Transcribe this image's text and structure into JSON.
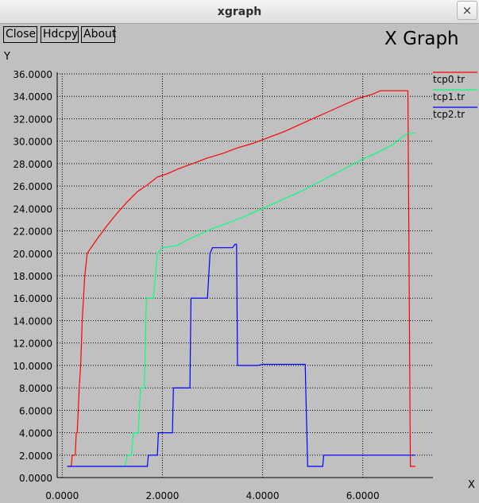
{
  "window": {
    "title": "xgraph",
    "close_glyph": "×"
  },
  "toolbar": {
    "close_label": "Close",
    "hdcpy_label": "Hdcpy",
    "about_label": "About"
  },
  "chart_data": {
    "type": "line",
    "title": "X Graph",
    "xlabel": "X",
    "ylabel": "Y",
    "xlim": [
      -0.1,
      7.4
    ],
    "ylim": [
      0,
      36
    ],
    "grid": true,
    "grid_style": "dotted",
    "legend_position": "right",
    "xticks": [
      0,
      2,
      4,
      6
    ],
    "xtick_labels": [
      "0.0000",
      "2.0000",
      "4.0000",
      "6.0000"
    ],
    "yticks": [
      0,
      2,
      4,
      6,
      8,
      10,
      12,
      14,
      16,
      18,
      20,
      22,
      24,
      26,
      28,
      30,
      32,
      34,
      36
    ],
    "ytick_labels": [
      "0.0000",
      "2.0000",
      "4.0000",
      "6.0000",
      "8.0000",
      "10.0000",
      "12.0000",
      "14.0000",
      "16.0000",
      "18.0000",
      "20.0000",
      "22.0000",
      "24.0000",
      "26.0000",
      "28.0000",
      "30.0000",
      "32.0000",
      "34.0000",
      "36.0000"
    ],
    "series": [
      {
        "name": "tcp0.tr",
        "color": "#ff0000",
        "points": [
          [
            0.1,
            1
          ],
          [
            0.18,
            1
          ],
          [
            0.2,
            2
          ],
          [
            0.26,
            2
          ],
          [
            0.28,
            4
          ],
          [
            0.3,
            4
          ],
          [
            0.32,
            6
          ],
          [
            0.34,
            8
          ],
          [
            0.37,
            10
          ],
          [
            0.4,
            14
          ],
          [
            0.45,
            18
          ],
          [
            0.5,
            20
          ],
          [
            0.7,
            21.3
          ],
          [
            0.9,
            22.5
          ],
          [
            1.1,
            23.6
          ],
          [
            1.3,
            24.6
          ],
          [
            1.5,
            25.5
          ],
          [
            1.7,
            26.1
          ],
          [
            1.9,
            26.8
          ],
          [
            2.1,
            27.1
          ],
          [
            2.3,
            27.5
          ],
          [
            2.6,
            28.0
          ],
          [
            2.9,
            28.5
          ],
          [
            3.2,
            28.9
          ],
          [
            3.5,
            29.4
          ],
          [
            3.8,
            29.8
          ],
          [
            4.1,
            30.3
          ],
          [
            4.4,
            30.8
          ],
          [
            4.7,
            31.4
          ],
          [
            5.0,
            32.0
          ],
          [
            5.3,
            32.6
          ],
          [
            5.6,
            33.2
          ],
          [
            5.9,
            33.8
          ],
          [
            6.2,
            34.2
          ],
          [
            6.35,
            34.5
          ],
          [
            6.9,
            34.5
          ],
          [
            6.95,
            1
          ],
          [
            7.05,
            1
          ]
        ]
      },
      {
        "name": "tcp1.tr",
        "color": "#00ff7f",
        "points": [
          [
            1.15,
            1
          ],
          [
            1.25,
            1
          ],
          [
            1.3,
            2
          ],
          [
            1.38,
            2
          ],
          [
            1.42,
            4
          ],
          [
            1.52,
            4
          ],
          [
            1.56,
            8
          ],
          [
            1.64,
            8
          ],
          [
            1.68,
            16
          ],
          [
            1.82,
            16
          ],
          [
            1.9,
            20
          ],
          [
            2.0,
            20.5
          ],
          [
            2.3,
            20.7
          ],
          [
            2.5,
            21.2
          ],
          [
            2.7,
            21.6
          ],
          [
            3.0,
            22.2
          ],
          [
            3.3,
            22.7
          ],
          [
            3.6,
            23.2
          ],
          [
            3.9,
            23.8
          ],
          [
            4.2,
            24.4
          ],
          [
            4.5,
            25.0
          ],
          [
            4.8,
            25.6
          ],
          [
            5.1,
            26.3
          ],
          [
            5.4,
            27.0
          ],
          [
            5.7,
            27.7
          ],
          [
            6.0,
            28.4
          ],
          [
            6.3,
            29.0
          ],
          [
            6.6,
            29.7
          ],
          [
            6.8,
            30.4
          ],
          [
            6.9,
            30.7
          ],
          [
            7.05,
            30.7
          ]
        ]
      },
      {
        "name": "tcp2.tr",
        "color": "#0000ff",
        "points": [
          [
            0.1,
            1
          ],
          [
            1.7,
            1
          ],
          [
            1.72,
            2
          ],
          [
            1.9,
            2
          ],
          [
            1.92,
            4
          ],
          [
            2.2,
            4
          ],
          [
            2.22,
            8
          ],
          [
            2.55,
            8
          ],
          [
            2.57,
            16
          ],
          [
            2.9,
            16
          ],
          [
            2.95,
            20
          ],
          [
            3.0,
            20.5
          ],
          [
            3.4,
            20.5
          ],
          [
            3.45,
            20.8
          ],
          [
            3.48,
            20.8
          ],
          [
            3.5,
            10
          ],
          [
            3.9,
            10
          ],
          [
            4.0,
            10.1
          ],
          [
            4.85,
            10.1
          ],
          [
            4.9,
            1
          ],
          [
            5.2,
            1
          ],
          [
            5.22,
            2
          ],
          [
            7.05,
            2
          ]
        ]
      }
    ]
  }
}
